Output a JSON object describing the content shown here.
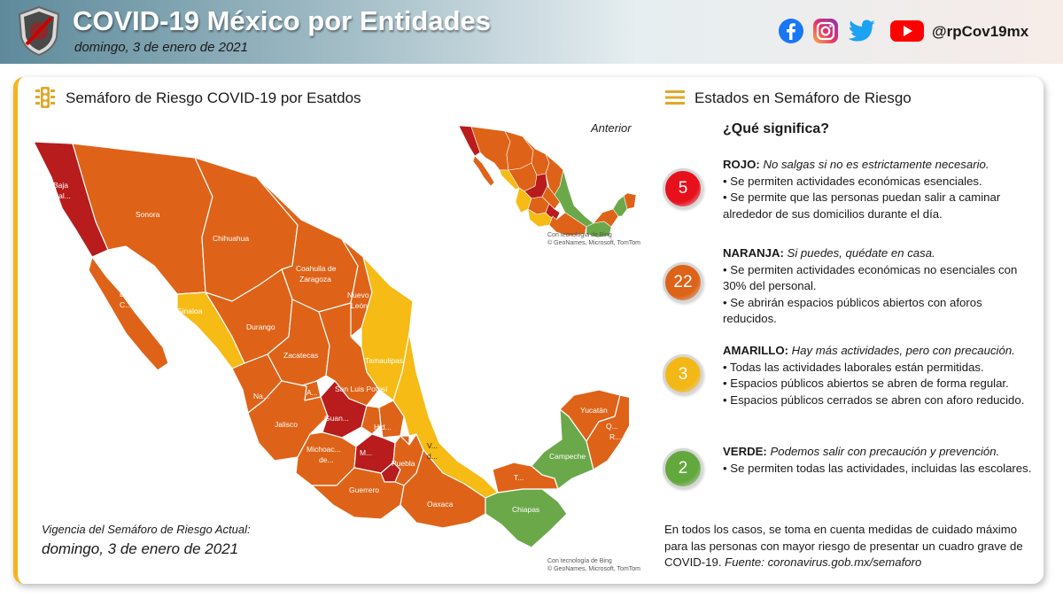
{
  "header": {
    "title": "COVID-19 México por Entidades",
    "date": "domingo, 3 de enero de 2021",
    "handle": "@rpCov19mx",
    "social_icons": [
      "facebook-icon",
      "instagram-icon",
      "twitter-icon",
      "youtube-icon"
    ]
  },
  "map_section": {
    "title": "Semáforo de Riesgo COVID-19 por Esatdos",
    "anterior_label": "Anterior",
    "bing_credit_line1": "Con tecnología de Bing",
    "bing_credit_line2": "© GeoNames, Microsoft, TomTom",
    "states": {
      "baja_california_1": "Baja",
      "baja_california_2": "Cal...",
      "bcs_1": "B...",
      "bcs_2": "C...",
      "sonora": "Sonora",
      "chihuahua": "Chihuahua",
      "coahuila_1": "Coahuila de",
      "coahuila_2": "Zaragoza",
      "nuevo_leon_1": "Nuevo",
      "nuevo_leon_2": "León",
      "sinaloa": "Sinaloa",
      "durango": "Durango",
      "tamaulipas": "Tamaulipas",
      "zacatecas": "Zacatecas",
      "san_luis_potosi": "San Luis Potosí",
      "nayarit": "Na...",
      "aguascalientes": "A...",
      "guanajuato": "Guan...",
      "jalisco": "Jalisco",
      "hidalgo": "Hid...",
      "michoacan_1": "Michoac...",
      "michoacan_2": "de...",
      "mexico": "M...",
      "puebla": "Puebla",
      "veracruz_1": "V...",
      "veracruz_2": "d...",
      "guerrero": "Guerrero",
      "oaxaca": "Oaxaca",
      "chiapas": "Chiapas",
      "tabasco": "T...",
      "campeche": "Campeche",
      "yucatan": "Yucatán",
      "quintana_roo_1": "Q...",
      "quintana_roo_2": "R..."
    },
    "vigencia_label": "Vigencia del Semáforo de Riesgo Actual:",
    "vigencia_date": "domingo, 3 de enero de 2021"
  },
  "legend_section": {
    "title": "Estados en Semáforo de Riesgo",
    "question": "¿Qué significa?",
    "levels": [
      {
        "count": "5",
        "color": "#e8101c",
        "name": "ROJO:",
        "tagline": "No salgas si no es estrictamente necesario.",
        "bullets": [
          "• Se permiten actividades económicas esenciales.",
          "• Se permite que las personas puedan salir a caminar alrededor de sus domicilios durante  el día."
        ]
      },
      {
        "count": "22",
        "color": "#dd6318",
        "name": "NARANJA:",
        "tagline": "Si puedes, quédate en casa.",
        "bullets": [
          "• Se permiten actividades económicas no esenciales con 30% del personal.",
          "• Se abrirán espacios públicos abiertos con aforos reducidos."
        ]
      },
      {
        "count": "3",
        "color": "#f3b716",
        "name": "AMARILLO:",
        "tagline": "Hay más actividades, pero con precaución.",
        "bullets": [
          "• Todas las actividades laborales están permitidas.",
          "• Espacios públicos abiertos se abren de forma regular.",
          "• Espacios públicos cerrados se abren con aforo reducido."
        ]
      },
      {
        "count": "2",
        "color": "#62a83c",
        "name": "VERDE:",
        "tagline": "Podemos salir con precaución y prevención.",
        "bullets": [
          "• Se permiten todas las actividades, incluidas las escolares."
        ]
      }
    ],
    "footer_text": "En todos los casos, se toma en cuenta medidas de cuidado máximo para las personas con mayor riesgo de presentar un cuadro grave de COVID-19.",
    "footer_source_label": "Fuente:",
    "footer_source": "coronavirus.gob.mx/semaforo"
  },
  "colors": {
    "rojo": "#b81c1c",
    "naranja": "#de6318",
    "amarillo": "#f6bb14",
    "verde": "#6aa84a",
    "accent": "#f2b61c"
  }
}
